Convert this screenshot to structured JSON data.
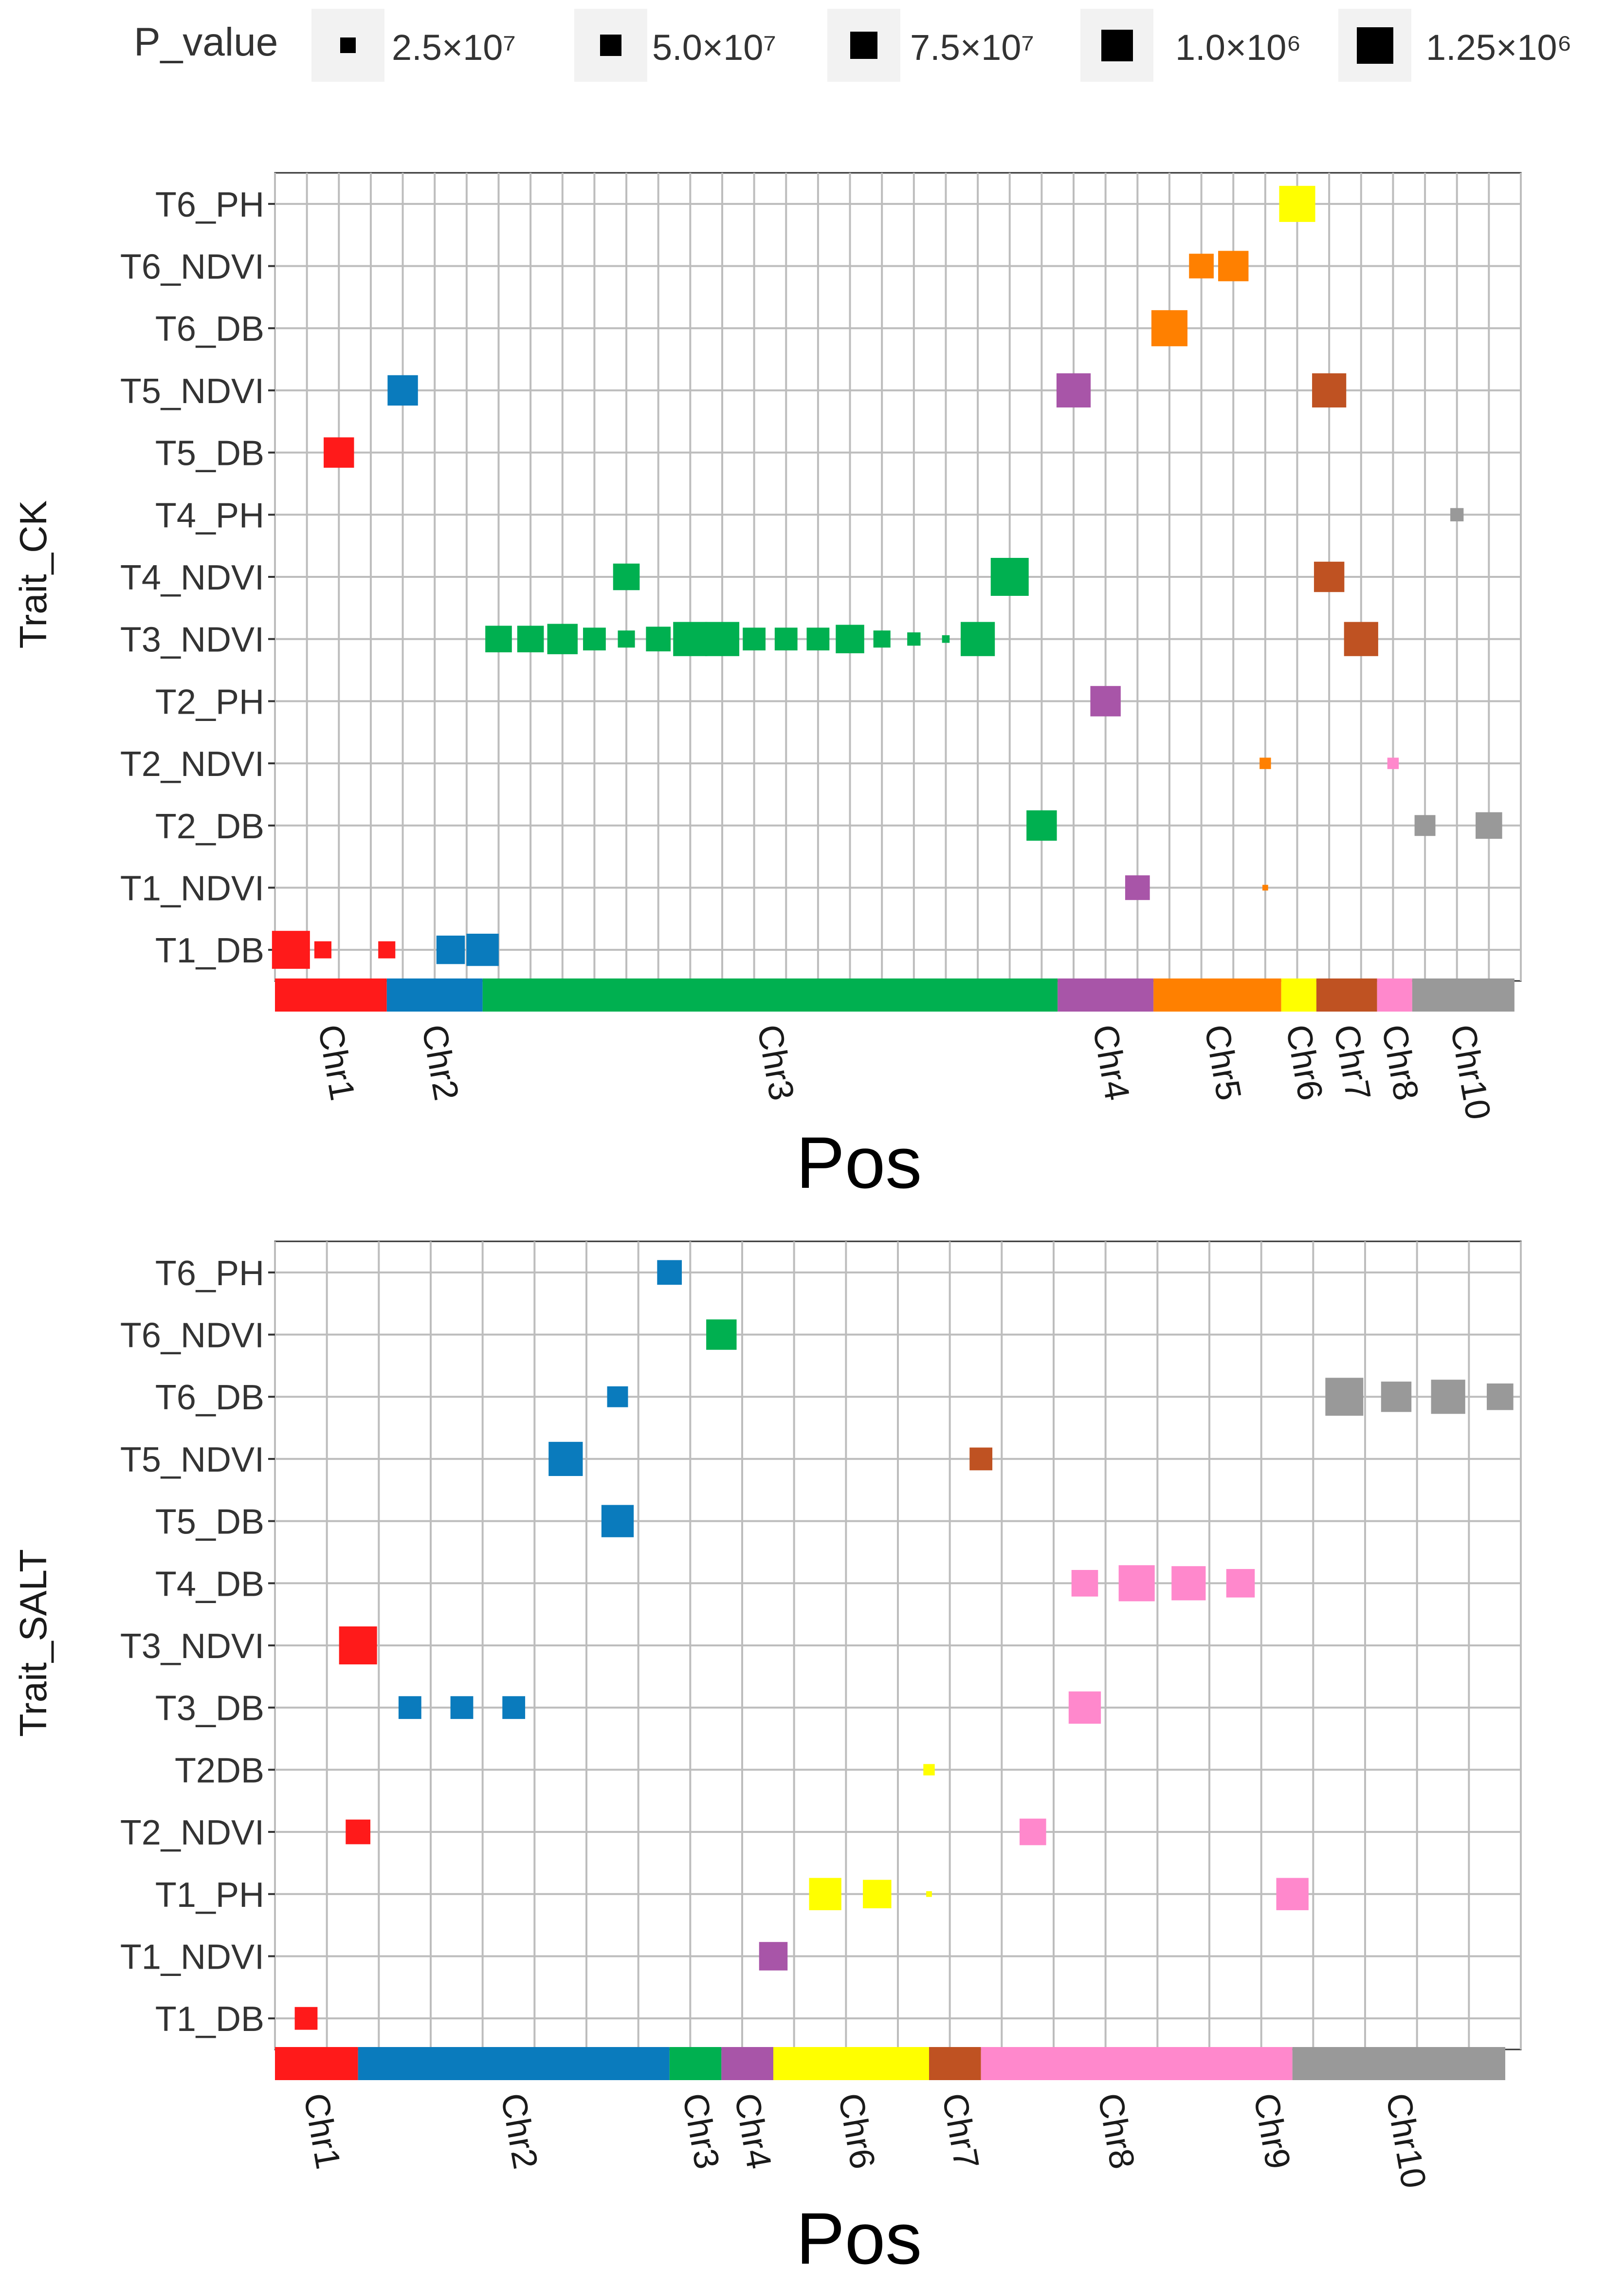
{
  "legend": {
    "title": "P_value",
    "entries": [
      {
        "label": "2.5×10⁷",
        "rel": 0.3
      },
      {
        "label": "5.0×10⁷",
        "rel": 0.5
      },
      {
        "label": "7.5×10⁷",
        "rel": 0.7
      },
      {
        "label": "1.0×10⁶",
        "rel": 0.85
      },
      {
        "label": "1.25×10⁶",
        "rel": 1.0
      }
    ]
  },
  "chromosome_colors": {
    "Chr1": "#ff1a1a",
    "Chr2": "#0a7bbd",
    "Chr3": "#00b050",
    "Chr4": "#a855a8",
    "Chr5": "#ff8000",
    "Chr6": "#ffff00",
    "Chr7": "#bf5222",
    "Chr8": "#ff88cc",
    "Chr9": "#ff88cc",
    "Chr10": "#999999"
  },
  "chart_data": [
    {
      "type": "scatter",
      "title": "",
      "xlabel": "Pos",
      "ylabel": "Trait_CK",
      "grid": true,
      "n_positions": 39,
      "categories": [
        "T1_DB",
        "T1_NDVI",
        "T2_DB",
        "T2_NDVI",
        "T2_PH",
        "T3_NDVI",
        "T4_NDVI",
        "T4_PH",
        "T5_DB",
        "T5_NDVI",
        "T6_DB",
        "T6_NDVI",
        "T6_PH"
      ],
      "chr_bands": [
        {
          "chr": "Chr1",
          "start": 0,
          "end": 3.5,
          "label": "Chr1"
        },
        {
          "chr": "Chr2",
          "start": 3.5,
          "end": 6.5,
          "label": "Chr2"
        },
        {
          "chr": "Chr3",
          "start": 6.5,
          "end": 24.5,
          "label": "Chr3"
        },
        {
          "chr": "Chr4",
          "start": 24.5,
          "end": 27.5,
          "label": "Chr4"
        },
        {
          "chr": "Chr5",
          "start": 27.5,
          "end": 31.5,
          "label": "Chr5"
        },
        {
          "chr": "Chr6",
          "start": 31.5,
          "end": 32.6,
          "label": "Chr6"
        },
        {
          "chr": "Chr7",
          "start": 32.6,
          "end": 34.5,
          "label": "Chr7"
        },
        {
          "chr": "Chr8",
          "start": 34.5,
          "end": 35.6,
          "label": "Chr8"
        },
        {
          "chr": "Chr10",
          "start": 35.6,
          "end": 38.8,
          "label": "Chr10"
        }
      ],
      "points": [
        {
          "trait": "T6_PH",
          "pos": 32,
          "chr": "Chr6",
          "size": 0.95
        },
        {
          "trait": "T6_NDVI",
          "pos": 29,
          "chr": "Chr5",
          "size": 0.65
        },
        {
          "trait": "T6_NDVI",
          "pos": 30,
          "chr": "Chr5",
          "size": 0.8
        },
        {
          "trait": "T6_DB",
          "pos": 28,
          "chr": "Chr5",
          "size": 0.95
        },
        {
          "trait": "T5_NDVI",
          "pos": 4,
          "chr": "Chr2",
          "size": 0.8
        },
        {
          "trait": "T5_NDVI",
          "pos": 25,
          "chr": "Chr4",
          "size": 0.9
        },
        {
          "trait": "T5_NDVI",
          "pos": 33,
          "chr": "Chr7",
          "size": 0.9
        },
        {
          "trait": "T5_DB",
          "pos": 2,
          "chr": "Chr1",
          "size": 0.8
        },
        {
          "trait": "T4_PH",
          "pos": 37,
          "chr": "Chr10",
          "size": 0.35
        },
        {
          "trait": "T4_NDVI",
          "pos": 11,
          "chr": "Chr3",
          "size": 0.7
        },
        {
          "trait": "T4_NDVI",
          "pos": 23,
          "chr": "Chr3",
          "size": 1.0
        },
        {
          "trait": "T4_NDVI",
          "pos": 33,
          "chr": "Chr7",
          "size": 0.8
        },
        {
          "trait": "T3_NDVI",
          "pos": 7,
          "chr": "Chr3",
          "size": 0.7
        },
        {
          "trait": "T3_NDVI",
          "pos": 8,
          "chr": "Chr3",
          "size": 0.7
        },
        {
          "trait": "T3_NDVI",
          "pos": 9,
          "chr": "Chr3",
          "size": 0.8
        },
        {
          "trait": "T3_NDVI",
          "pos": 10,
          "chr": "Chr3",
          "size": 0.6
        },
        {
          "trait": "T3_NDVI",
          "pos": 11,
          "chr": "Chr3",
          "size": 0.45
        },
        {
          "trait": "T3_NDVI",
          "pos": 12,
          "chr": "Chr3",
          "size": 0.65
        },
        {
          "trait": "T3_NDVI",
          "pos": 13,
          "chr": "Chr3",
          "size": 0.9
        },
        {
          "trait": "T3_NDVI",
          "pos": 14,
          "chr": "Chr3",
          "size": 0.9
        },
        {
          "trait": "T3_NDVI",
          "pos": 15,
          "chr": "Chr3",
          "size": 0.6
        },
        {
          "trait": "T3_NDVI",
          "pos": 16,
          "chr": "Chr3",
          "size": 0.6
        },
        {
          "trait": "T3_NDVI",
          "pos": 17,
          "chr": "Chr3",
          "size": 0.6
        },
        {
          "trait": "T3_NDVI",
          "pos": 18,
          "chr": "Chr3",
          "size": 0.75
        },
        {
          "trait": "T3_NDVI",
          "pos": 19,
          "chr": "Chr3",
          "size": 0.45
        },
        {
          "trait": "T3_NDVI",
          "pos": 20,
          "chr": "Chr3",
          "size": 0.35
        },
        {
          "trait": "T3_NDVI",
          "pos": 21,
          "chr": "Chr3",
          "size": 0.2
        },
        {
          "trait": "T3_NDVI",
          "pos": 22,
          "chr": "Chr3",
          "size": 0.9
        },
        {
          "trait": "T3_NDVI",
          "pos": 34,
          "chr": "Chr7",
          "size": 0.9
        },
        {
          "trait": "T2_PH",
          "pos": 26,
          "chr": "Chr4",
          "size": 0.8
        },
        {
          "trait": "T2_NDVI",
          "pos": 31,
          "chr": "Chr5",
          "size": 0.3
        },
        {
          "trait": "T2_NDVI",
          "pos": 35,
          "chr": "Chr8",
          "size": 0.3
        },
        {
          "trait": "T2_DB",
          "pos": 24,
          "chr": "Chr3",
          "size": 0.8
        },
        {
          "trait": "T2_DB",
          "pos": 36,
          "chr": "Chr10",
          "size": 0.55
        },
        {
          "trait": "T2_DB",
          "pos": 38,
          "chr": "Chr10",
          "size": 0.7
        },
        {
          "trait": "T1_NDVI",
          "pos": 27,
          "chr": "Chr4",
          "size": 0.65
        },
        {
          "trait": "T1_NDVI",
          "pos": 31,
          "chr": "Chr5",
          "size": 0.15
        },
        {
          "trait": "T1_DB",
          "pos": 0.5,
          "chr": "Chr1",
          "size": 1.0
        },
        {
          "trait": "T1_DB",
          "pos": 1.5,
          "chr": "Chr1",
          "size": 0.45
        },
        {
          "trait": "T1_DB",
          "pos": 3.5,
          "chr": "Chr1",
          "size": 0.45
        },
        {
          "trait": "T1_DB",
          "pos": 5.5,
          "chr": "Chr2",
          "size": 0.75
        },
        {
          "trait": "T1_DB",
          "pos": 6.5,
          "chr": "Chr2",
          "size": 0.85
        }
      ]
    },
    {
      "type": "scatter",
      "title": "",
      "xlabel": "Pos",
      "ylabel": "Trait_SALT",
      "grid": true,
      "n_positions": 24,
      "categories": [
        "T1_DB",
        "T1_NDVI",
        "T1_PH",
        "T2_NDVI",
        "T2DB",
        "T3_DB",
        "T3_NDVI",
        "T4_DB",
        "T5_DB",
        "T5_NDVI",
        "T6_DB",
        "T6_NDVI",
        "T6_PH"
      ],
      "chr_bands": [
        {
          "chr": "Chr1",
          "start": 0,
          "end": 1.6,
          "label": "Chr1"
        },
        {
          "chr": "Chr2",
          "start": 1.6,
          "end": 7.6,
          "label": "Chr2"
        },
        {
          "chr": "Chr3",
          "start": 7.6,
          "end": 8.6,
          "label": "Chr3"
        },
        {
          "chr": "Chr4",
          "start": 8.6,
          "end": 9.6,
          "label": "Chr4"
        },
        {
          "chr": "Chr6",
          "start": 9.6,
          "end": 12.6,
          "label": "Chr6"
        },
        {
          "chr": "Chr7",
          "start": 12.6,
          "end": 13.6,
          "label": "Chr7"
        },
        {
          "chr": "Chr8",
          "start": 13.6,
          "end": 18.6,
          "label": "Chr8"
        },
        {
          "chr": "Chr9",
          "start": 18.6,
          "end": 19.6,
          "label": "Chr9"
        },
        {
          "chr": "Chr10",
          "start": 19.6,
          "end": 23.7,
          "label": "Chr10"
        }
      ],
      "points": [
        {
          "trait": "T6_PH",
          "pos": 7.6,
          "chr": "Chr2",
          "size": 0.65
        },
        {
          "trait": "T6_NDVI",
          "pos": 8.6,
          "chr": "Chr3",
          "size": 0.8
        },
        {
          "trait": "T6_DB",
          "pos": 6.6,
          "chr": "Chr2",
          "size": 0.55
        },
        {
          "trait": "T6_DB",
          "pos": 20.6,
          "chr": "Chr10",
          "size": 1.0
        },
        {
          "trait": "T6_DB",
          "pos": 21.6,
          "chr": "Chr10",
          "size": 0.8
        },
        {
          "trait": "T6_DB",
          "pos": 22.6,
          "chr": "Chr10",
          "size": 0.9
        },
        {
          "trait": "T6_DB",
          "pos": 23.6,
          "chr": "Chr10",
          "size": 0.7
        },
        {
          "trait": "T5_NDVI",
          "pos": 5.6,
          "chr": "Chr2",
          "size": 0.9
        },
        {
          "trait": "T5_NDVI",
          "pos": 13.6,
          "chr": "Chr7",
          "size": 0.6
        },
        {
          "trait": "T5_DB",
          "pos": 6.6,
          "chr": "Chr2",
          "size": 0.85
        },
        {
          "trait": "T4_DB",
          "pos": 15.6,
          "chr": "Chr8",
          "size": 0.7
        },
        {
          "trait": "T4_DB",
          "pos": 16.6,
          "chr": "Chr8",
          "size": 0.95
        },
        {
          "trait": "T4_DB",
          "pos": 17.6,
          "chr": "Chr8",
          "size": 0.9
        },
        {
          "trait": "T4_DB",
          "pos": 18.6,
          "chr": "Chr8",
          "size": 0.75
        },
        {
          "trait": "T3_NDVI",
          "pos": 1.6,
          "chr": "Chr1",
          "size": 1.0
        },
        {
          "trait": "T3_DB",
          "pos": 2.6,
          "chr": "Chr2",
          "size": 0.6
        },
        {
          "trait": "T3_DB",
          "pos": 3.6,
          "chr": "Chr2",
          "size": 0.6
        },
        {
          "trait": "T3_DB",
          "pos": 4.6,
          "chr": "Chr2",
          "size": 0.6
        },
        {
          "trait": "T3_DB",
          "pos": 15.6,
          "chr": "Chr8",
          "size": 0.85
        },
        {
          "trait": "T2DB",
          "pos": 12.6,
          "chr": "Chr6",
          "size": 0.3
        },
        {
          "trait": "T2_NDVI",
          "pos": 1.6,
          "chr": "Chr1",
          "size": 0.65
        },
        {
          "trait": "T2_NDVI",
          "pos": 14.6,
          "chr": "Chr8",
          "size": 0.7
        },
        {
          "trait": "T1_PH",
          "pos": 10.6,
          "chr": "Chr6",
          "size": 0.85
        },
        {
          "trait": "T1_PH",
          "pos": 11.6,
          "chr": "Chr6",
          "size": 0.75
        },
        {
          "trait": "T1_PH",
          "pos": 12.6,
          "chr": "Chr6",
          "size": 0.15
        },
        {
          "trait": "T1_PH",
          "pos": 19.6,
          "chr": "Chr9",
          "size": 0.85
        },
        {
          "trait": "T1_NDVI",
          "pos": 9.6,
          "chr": "Chr4",
          "size": 0.75
        },
        {
          "trait": "T1_DB",
          "pos": 0.6,
          "chr": "Chr1",
          "size": 0.6
        }
      ]
    }
  ]
}
